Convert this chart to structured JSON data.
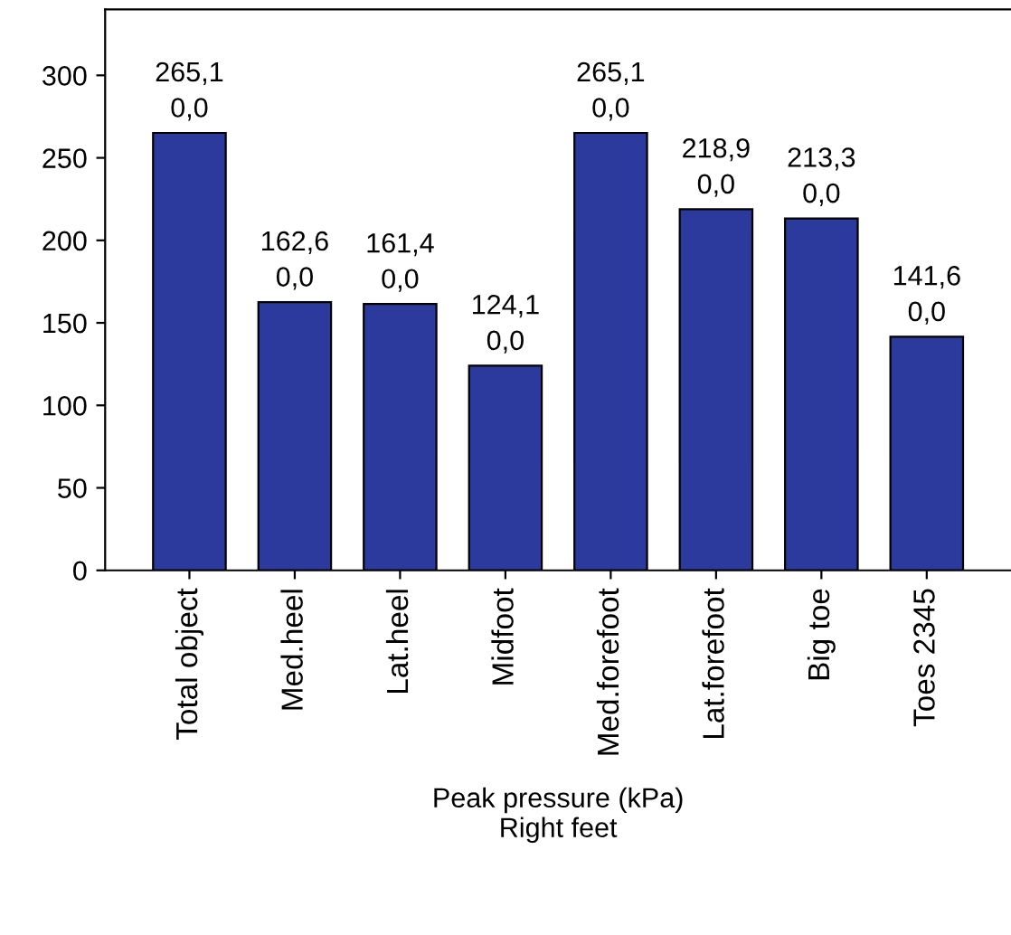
{
  "chart_data": {
    "type": "bar",
    "xlabel": "Peak pressure (kPa)\nRight feet",
    "categories": [
      "Total object",
      "Med.heel",
      "Lat.heel",
      "Midfoot",
      "Med.forefoot",
      "Lat.forefoot",
      "Big toe",
      "Toes 2345"
    ],
    "values": [
      265.1,
      162.6,
      161.4,
      124.1,
      265.1,
      218.9,
      213.3,
      141.6
    ],
    "value_labels": [
      "265,1\n0,0",
      "162,6\n0,0",
      "161,4\n0,0",
      "124,1\n0,0",
      "265,1\n0,0",
      "218,9\n0,0",
      "213,3\n0,0",
      "141,6\n0,0"
    ],
    "color": "#2b3a9c",
    "ylim": [
      0,
      340
    ],
    "yticks": [
      0,
      50,
      100,
      150,
      200,
      250,
      300
    ],
    "grid": false,
    "legend": false
  }
}
